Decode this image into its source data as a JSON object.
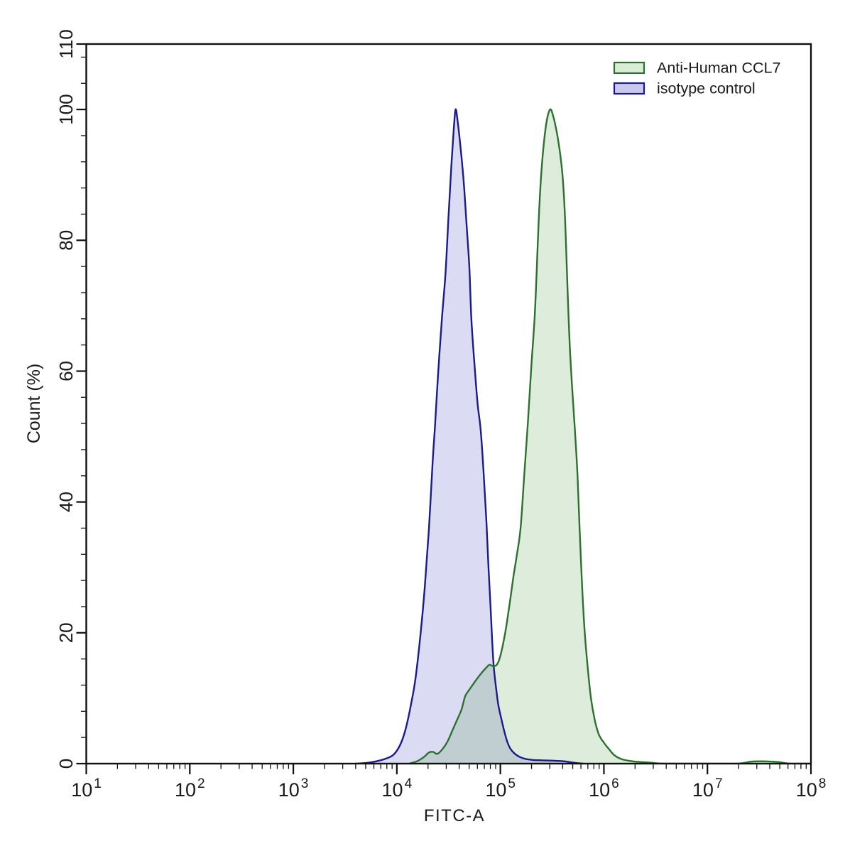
{
  "figure": {
    "background": "#ffffff"
  },
  "chart_data": {
    "type": "area",
    "subtype": "flow-cytometry-overlay-histogram",
    "title": "",
    "xlabel": "FITC-A",
    "ylabel": "Count (%)",
    "x_scale": "log10",
    "xlim_log": [
      1,
      8
    ],
    "x_decades": [
      1,
      2,
      3,
      4,
      5,
      6,
      7,
      8
    ],
    "x_tick_base": "10",
    "ylim": [
      0,
      110
    ],
    "y_major_ticks": [
      0,
      20,
      40,
      60,
      80,
      100,
      110
    ],
    "y_minor_step": 4,
    "grid": false,
    "legend_position": "top-right",
    "axis_color": "#111111",
    "series": [
      {
        "name": "Anti-Human CCL7",
        "line_color": "#2d7030",
        "fill_color": "rgba(70,150,60,0.18)",
        "peak_log10_x": 5.48,
        "peak_percent": 100,
        "points": [
          [
            4.12,
            0
          ],
          [
            4.2,
            0.4
          ],
          [
            4.26,
            1.0
          ],
          [
            4.31,
            1.7
          ],
          [
            4.35,
            1.8
          ],
          [
            4.39,
            1.5
          ],
          [
            4.44,
            2.2
          ],
          [
            4.49,
            3.4
          ],
          [
            4.54,
            5.2
          ],
          [
            4.585,
            6.8
          ],
          [
            4.625,
            8.3
          ],
          [
            4.66,
            10.3
          ],
          [
            4.7,
            11.3
          ],
          [
            4.74,
            12.2
          ],
          [
            4.78,
            13.1
          ],
          [
            4.82,
            13.9
          ],
          [
            4.86,
            14.6
          ],
          [
            4.895,
            15.1
          ],
          [
            4.93,
            14.9
          ],
          [
            4.965,
            15.1
          ],
          [
            4.995,
            16.2
          ],
          [
            5.025,
            18.2
          ],
          [
            5.055,
            20.8
          ],
          [
            5.09,
            24.5
          ],
          [
            5.125,
            28.5
          ],
          [
            5.16,
            32
          ],
          [
            5.195,
            36
          ],
          [
            5.23,
            44
          ],
          [
            5.265,
            52
          ],
          [
            5.3,
            61
          ],
          [
            5.33,
            68
          ],
          [
            5.35,
            75
          ],
          [
            5.37,
            83
          ],
          [
            5.39,
            89
          ],
          [
            5.415,
            94
          ],
          [
            5.445,
            98
          ],
          [
            5.48,
            100
          ],
          [
            5.51,
            99
          ],
          [
            5.545,
            96.5
          ],
          [
            5.575,
            93.5
          ],
          [
            5.6,
            90
          ],
          [
            5.62,
            85
          ],
          [
            5.635,
            79
          ],
          [
            5.65,
            72
          ],
          [
            5.67,
            64
          ],
          [
            5.695,
            57
          ],
          [
            5.72,
            51
          ],
          [
            5.745,
            44
          ],
          [
            5.765,
            36
          ],
          [
            5.79,
            27
          ],
          [
            5.815,
            20
          ],
          [
            5.845,
            14.5
          ],
          [
            5.875,
            10
          ],
          [
            5.91,
            6.8
          ],
          [
            5.95,
            4.5
          ],
          [
            6.0,
            3.2
          ],
          [
            6.05,
            2.2
          ],
          [
            6.1,
            1.3
          ],
          [
            6.17,
            0.7
          ],
          [
            6.28,
            0.35
          ],
          [
            6.45,
            0.15
          ],
          [
            6.6,
            0
          ],
          [
            7.0,
            0
          ],
          [
            7.3,
            0
          ],
          [
            7.42,
            0.3
          ],
          [
            7.55,
            0.35
          ],
          [
            7.68,
            0.25
          ],
          [
            7.8,
            0
          ],
          [
            8.0,
            0
          ]
        ]
      },
      {
        "name": "isotype control",
        "line_color": "#1b1b8a",
        "fill_color": "rgba(30,30,180,0.16)",
        "peak_log10_x": 4.57,
        "peak_percent": 100,
        "points": [
          [
            3.6,
            0
          ],
          [
            3.7,
            0.1
          ],
          [
            3.8,
            0.35
          ],
          [
            3.9,
            0.8
          ],
          [
            3.97,
            1.4
          ],
          [
            4.03,
            2.8
          ],
          [
            4.08,
            5
          ],
          [
            4.13,
            8.5
          ],
          [
            4.18,
            13
          ],
          [
            4.23,
            20
          ],
          [
            4.27,
            27
          ],
          [
            4.31,
            36
          ],
          [
            4.345,
            46
          ],
          [
            4.37,
            52
          ],
          [
            4.4,
            60
          ],
          [
            4.435,
            68
          ],
          [
            4.47,
            75
          ],
          [
            4.5,
            84
          ],
          [
            4.525,
            91
          ],
          [
            4.55,
            97
          ],
          [
            4.567,
            100
          ],
          [
            4.585,
            98.5
          ],
          [
            4.61,
            95
          ],
          [
            4.635,
            91
          ],
          [
            4.655,
            87
          ],
          [
            4.675,
            82
          ],
          [
            4.7,
            76
          ],
          [
            4.72,
            68
          ],
          [
            4.75,
            61
          ],
          [
            4.78,
            55
          ],
          [
            4.81,
            51
          ],
          [
            4.84,
            44
          ],
          [
            4.865,
            37
          ],
          [
            4.885,
            30
          ],
          [
            4.905,
            24
          ],
          [
            4.92,
            19
          ],
          [
            4.935,
            15
          ],
          [
            4.955,
            12
          ],
          [
            4.98,
            9
          ],
          [
            5.01,
            6.8
          ],
          [
            5.04,
            4.8
          ],
          [
            5.07,
            3.2
          ],
          [
            5.1,
            2.2
          ],
          [
            5.14,
            1.5
          ],
          [
            5.19,
            1.0
          ],
          [
            5.25,
            0.7
          ],
          [
            5.32,
            0.55
          ],
          [
            5.42,
            0.5
          ],
          [
            5.52,
            0.45
          ],
          [
            5.62,
            0.35
          ],
          [
            5.72,
            0.12
          ],
          [
            5.8,
            0
          ]
        ]
      }
    ]
  },
  "legend": {
    "items": [
      {
        "label": "Anti-Human CCL7",
        "swatch_border": "#2d7030",
        "swatch_fill": "#d8edd4"
      },
      {
        "label": "isotype control",
        "swatch_border": "#1b1b8a",
        "swatch_fill": "#c9c9ef"
      }
    ]
  }
}
